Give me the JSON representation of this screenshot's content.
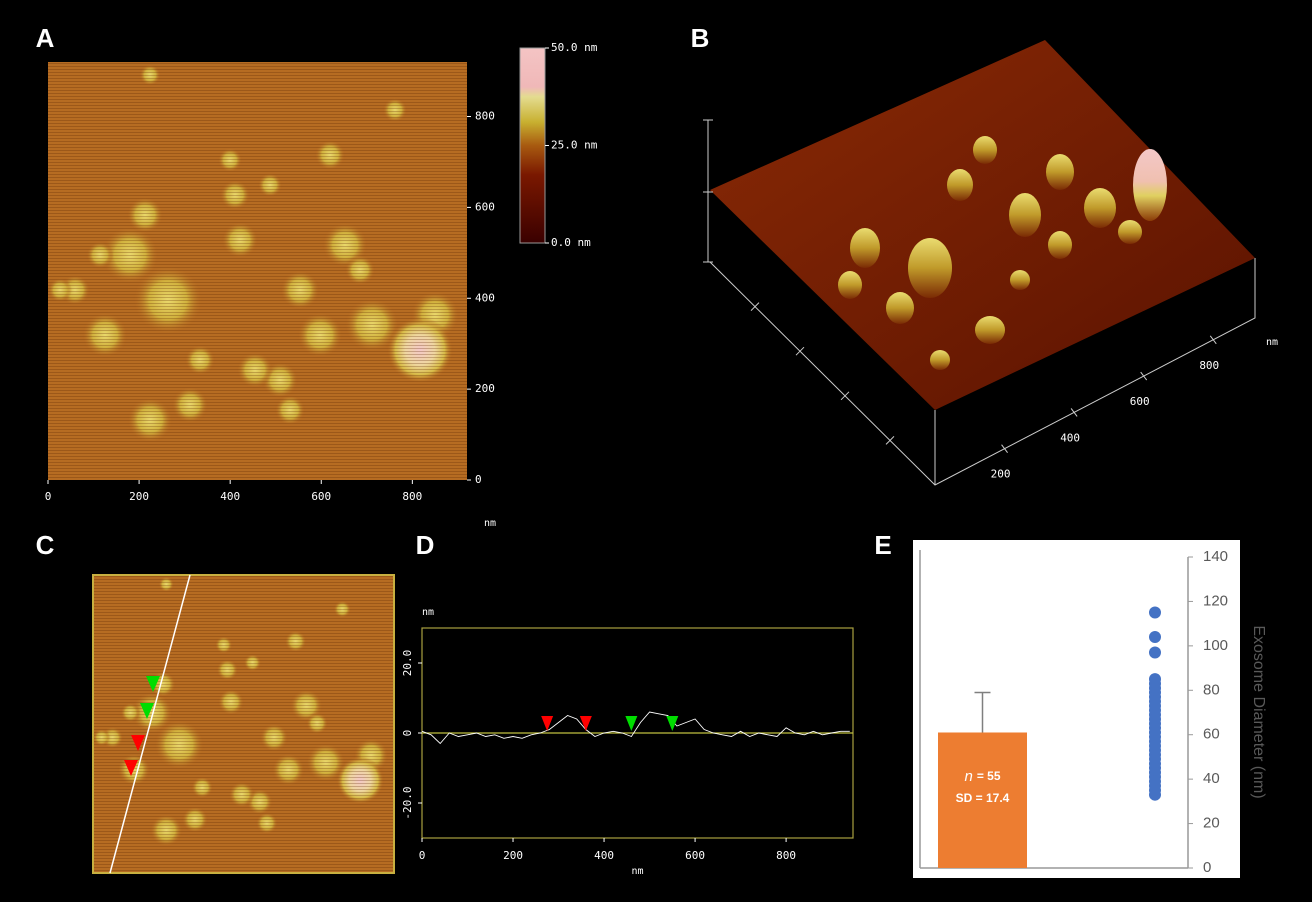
{
  "chart_data": [
    {
      "type": "image",
      "label": "A",
      "xlim": [
        0,
        920
      ],
      "ylim": [
        0,
        920
      ],
      "xticks": [
        0,
        200,
        400,
        600,
        800
      ],
      "yticks": [
        0,
        200,
        400,
        600,
        800
      ],
      "unit": "nm",
      "colorbar": {
        "lim": [
          0,
          50
        ],
        "ticks": [
          {
            "value": 50,
            "label": "50.0 nm"
          },
          {
            "value": 25,
            "label": "25.0 nm"
          },
          {
            "value": 0,
            "label": "0.0 nm"
          }
        ]
      }
    },
    {
      "type": "surface",
      "label": "B",
      "xlim": [
        0,
        920
      ],
      "xticks": [
        200,
        400,
        600,
        800
      ],
      "unit": "nm"
    },
    {
      "type": "image",
      "label": "C"
    },
    {
      "type": "line",
      "label": "D",
      "xlim": [
        0,
        947
      ],
      "ylim": [
        -30,
        30
      ],
      "xticks": [
        0,
        200,
        400,
        600,
        800
      ],
      "yticks": [
        {
          "value": 20,
          "label": "20.0"
        },
        0,
        {
          "value": -20,
          "label": "-20.0"
        }
      ],
      "y_unit": "nm",
      "x_unit": "nm",
      "x": [
        0,
        20,
        40,
        60,
        80,
        100,
        120,
        140,
        160,
        180,
        200,
        220,
        240,
        260,
        280,
        300,
        320,
        340,
        360,
        380,
        400,
        420,
        440,
        460,
        480,
        500,
        520,
        540,
        560,
        580,
        600,
        620,
        640,
        660,
        680,
        700,
        720,
        740,
        760,
        780,
        800,
        820,
        840,
        860,
        880,
        900,
        920,
        940
      ],
      "series": [
        {
          "color": "#ffffff",
          "values": [
            0.5,
            -0.5,
            -3,
            0,
            -1,
            -0.5,
            0,
            -1,
            -0.5,
            -1.5,
            -1,
            -1.5,
            -0.5,
            0,
            1,
            3,
            5,
            4,
            1,
            -1,
            0,
            0.5,
            0,
            -1,
            3,
            6,
            5.5,
            5,
            2,
            3,
            4,
            1,
            0,
            -0.5,
            -1,
            0.5,
            -1,
            0,
            -0.5,
            -1,
            1.5,
            0,
            -0.5,
            0.5,
            -0.5,
            0,
            0.5,
            0.5
          ]
        }
      ],
      "markers": [
        {
          "x": 275,
          "color": "#ff0000"
        },
        {
          "x": 360,
          "color": "#ff0000"
        },
        {
          "x": 460,
          "color": "#00dd00"
        },
        {
          "x": 550,
          "color": "#00dd00"
        }
      ]
    },
    {
      "type": "bar",
      "label": "E",
      "ylim": [
        0,
        140
      ],
      "yticks": [
        0,
        20,
        40,
        60,
        80,
        100,
        120,
        140
      ],
      "y_label": "Exosome Diameter (nm)",
      "values": [
        61
      ],
      "errors": [
        18
      ],
      "color": "#ed7d31",
      "annotations": [
        "n",
        "= 55",
        "SD = 17.4"
      ],
      "points": {
        "color": "#4472c4",
        "values": [
          115,
          104,
          97,
          85,
          83,
          81,
          79,
          77,
          75,
          73,
          71,
          69,
          67,
          65,
          63,
          61,
          59,
          57,
          55,
          53,
          51,
          49,
          47,
          45,
          43,
          41,
          39,
          37,
          35,
          33
        ]
      }
    }
  ]
}
